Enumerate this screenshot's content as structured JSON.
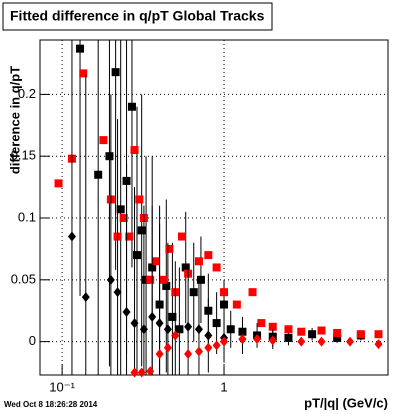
{
  "chart_data": {
    "type": "scatter",
    "title": "Fitted difference in q/pT  Global Tracks",
    "y_label": "difference in q/pT",
    "x_label": "pT/|q| (GeV/c)",
    "timestamp": "Wed Oct  8 18:26:28 2014",
    "xlim": [
      0.073,
      10.3
    ],
    "ylim": [
      -0.027,
      0.244
    ],
    "x_log": true,
    "grid": true,
    "xticks": [
      {
        "value": 0.1,
        "label": "10⁻¹"
      },
      1
    ],
    "yticks": [
      0,
      0.05,
      0.1,
      0.15,
      0.2
    ],
    "series": [
      {
        "marker": "square",
        "color": "#000000",
        "x": [
          0.129,
          0.167,
          0.196,
          0.214,
          0.23,
          0.25,
          0.27,
          0.29,
          0.31,
          0.33,
          0.36,
          0.4,
          0.44,
          0.48,
          0.53,
          0.58,
          0.65,
          0.72,
          0.8,
          0.9,
          1.0,
          1.1,
          1.3,
          1.6,
          2.0,
          2.5,
          3.5,
          5,
          7
        ],
        "values": [
          0.237,
          0.135,
          0.15,
          0.218,
          0.107,
          0.13,
          0.19,
          0.07,
          0.09,
          0.05,
          0.06,
          0.03,
          0.045,
          0.02,
          0.01,
          0.06,
          0.04,
          0.05,
          0.025,
          0.015,
          0.03,
          0.01,
          0.008,
          0.005,
          0.004,
          0.003,
          0.006,
          0.003,
          0.005
        ],
        "errors": [
          0.2,
          0.18,
          0.17,
          0.16,
          0.15,
          0.14,
          0.13,
          0.12,
          0.11,
          0.1,
          0.09,
          0.08,
          0.07,
          0.06,
          0.05,
          0.045,
          0.04,
          0.035,
          0.03,
          0.025,
          0.02,
          0.015,
          0.012,
          0.01,
          0.008,
          0.006,
          0.005,
          0.004,
          0.004
        ]
      },
      {
        "marker": "square",
        "color": "#ff0000",
        "x": [
          0.095,
          0.115,
          0.135,
          0.18,
          0.2,
          0.22,
          0.24,
          0.26,
          0.28,
          0.3,
          0.32,
          0.35,
          0.38,
          0.42,
          0.46,
          0.5,
          0.55,
          0.6,
          0.7,
          0.8,
          0.9,
          1.0,
          1.2,
          1.5,
          1.7,
          2.0,
          2.5,
          3,
          4,
          5,
          7,
          9
        ],
        "values": [
          0.128,
          0.148,
          0.217,
          0.163,
          0.115,
          0.085,
          0.1,
          0.085,
          0.155,
          0.115,
          0.1,
          0.05,
          0.065,
          0.05,
          0.075,
          0.04,
          0.085,
          0.055,
          0.065,
          0.07,
          0.06,
          0.04,
          0.03,
          0.04,
          0.015,
          0.012,
          0.01,
          0.008,
          0.009,
          0.007,
          0.006,
          0.006
        ]
      },
      {
        "marker": "diamond",
        "color": "#000000",
        "x": [
          0.115,
          0.14,
          0.2,
          0.22,
          0.25,
          0.28,
          0.32,
          0.36,
          0.4,
          0.45,
          0.5,
          0.6,
          0.7,
          0.8,
          1.0,
          1.3,
          2
        ],
        "values": [
          0.085,
          0.036,
          0.05,
          0.04,
          0.024,
          0.015,
          0.01,
          0.02,
          0.015,
          0.01,
          0.005,
          0.012,
          0.01,
          0.005,
          0.003,
          0.002,
          0.002
        ],
        "errors": [
          0.2,
          0.18,
          0.15,
          0.14,
          0.12,
          0.11,
          0.1,
          0.09,
          0.08,
          0.07,
          0.06,
          0.05,
          0.04,
          0.03,
          0.02,
          0.012,
          0.008
        ]
      },
      {
        "marker": "diamond",
        "color": "#ff0000",
        "x": [
          0.28,
          0.31,
          0.35,
          0.4,
          0.45,
          0.5,
          0.6,
          0.7,
          0.8,
          0.9,
          1.0,
          1.3,
          1.6,
          2,
          3,
          4,
          6,
          9
        ],
        "values": [
          -0.025,
          -0.025,
          -0.024,
          -0.01,
          -0.005,
          0.005,
          -0.01,
          -0.008,
          -0.005,
          -0.003,
          0.0,
          0.002,
          0.002,
          0.001,
          0.0,
          0.0,
          0.0,
          -0.002
        ]
      }
    ]
  }
}
